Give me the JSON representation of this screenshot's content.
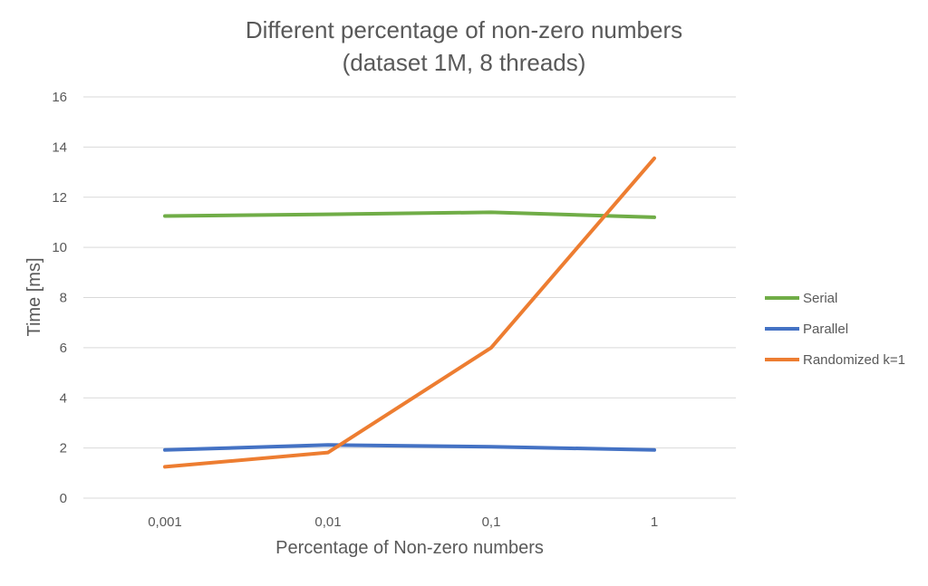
{
  "chart_data": {
    "type": "line",
    "title": "Different percentage of non-zero numbers",
    "subtitle": "(dataset 1M, 8 threads)",
    "xlabel": "Percentage of Non-zero numbers",
    "ylabel": "Time [ms]",
    "categories": [
      "0,001",
      "0,01",
      "0,1",
      "1"
    ],
    "ylim": [
      0,
      16
    ],
    "yticks": [
      0,
      2,
      4,
      6,
      8,
      10,
      12,
      14,
      16
    ],
    "grid": true,
    "legend_position": "right",
    "series": [
      {
        "name": "Serial",
        "color": "#70ad47",
        "values": [
          11.25,
          11.32,
          11.4,
          11.2
        ]
      },
      {
        "name": "Parallel",
        "color": "#4472c4",
        "values": [
          1.92,
          2.12,
          2.05,
          1.92
        ]
      },
      {
        "name": "Randomized k=1",
        "color": "#ed7d31",
        "values": [
          1.25,
          1.82,
          6.0,
          13.55
        ]
      }
    ]
  }
}
